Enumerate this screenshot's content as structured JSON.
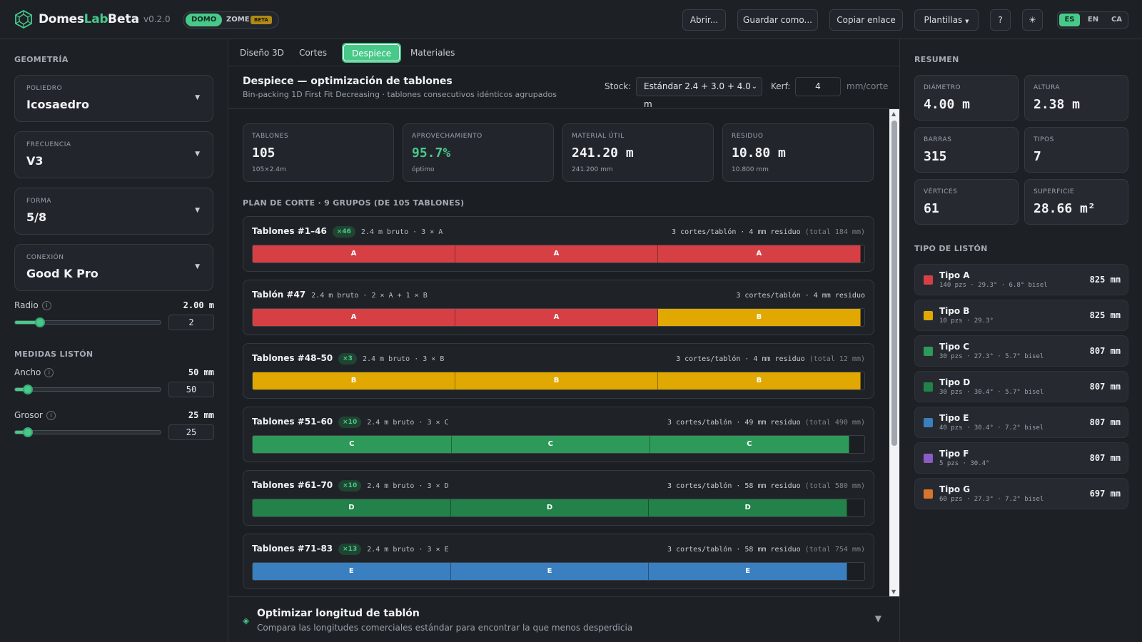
{
  "header": {
    "brand_main": "Domes",
    "brand_accent": "Lab",
    "title": "Beta",
    "version": "v0.2.0",
    "modes": {
      "domo": "DOMO",
      "zome": "ZOME",
      "zome_badge": "BETA"
    },
    "buttons": {
      "open": "Abrir...",
      "save_as": "Guardar como...",
      "copy_link": "Copiar enlace",
      "templates": "Plantillas",
      "help": "?",
      "theme": "☀"
    },
    "languages": [
      "ES",
      "EN",
      "CA"
    ],
    "active_language": "ES"
  },
  "left": {
    "geometry_title": "GEOMETRÍA",
    "selects": [
      {
        "label": "POLIEDRO",
        "value": "Icosaedro"
      },
      {
        "label": "FRECUENCIA",
        "value": "V3"
      },
      {
        "label": "FORMA",
        "value": "5/8"
      },
      {
        "label": "CONEXIÓN",
        "value": "Good K Pro"
      }
    ],
    "radius": {
      "label": "Radio",
      "display": "2.00 m",
      "input": "2",
      "fraction": 0.17
    },
    "medidas_title": "MEDIDAS LISTÓN",
    "width": {
      "label": "Ancho",
      "display": "50 mm",
      "input": "50",
      "fraction": 0.09
    },
    "thickness": {
      "label": "Grosor",
      "display": "25 mm",
      "input": "25",
      "fraction": 0.09
    }
  },
  "tabs": [
    "Diseño 3D",
    "Cortes",
    "Despiece",
    "Materiales"
  ],
  "active_tab": "Despiece",
  "panel": {
    "title": "Despiece — optimización de tablones",
    "subtitle": "Bin-packing 1D First Fit Decreasing · tablones consecutivos idénticos agrupados",
    "stock_label": "Stock:",
    "stock_value": "Estándar 2.4 + 3.0 + 4.0 m",
    "kerf_label": "Kerf:",
    "kerf_value": "4",
    "kerf_unit": "mm/corte"
  },
  "stats": [
    {
      "label": "TABLONES",
      "value": "105",
      "sub": "105×2.4m",
      "color": "#f1f3f5"
    },
    {
      "label": "APROVECHAMIENTO",
      "value": "95.7%",
      "sub": "óptimo",
      "color": "#48c98a"
    },
    {
      "label": "MATERIAL ÚTIL",
      "value": "241.20 m",
      "sub": "241.200 mm",
      "color": "#f1f3f5"
    },
    {
      "label": "RESIDUO",
      "value": "10.80 m",
      "sub": "10.800 mm",
      "color": "#f1f3f5"
    }
  ],
  "plan_title": "PLAN DE CORTE · 9 GRUPOS (DE 105 TABLONES)",
  "groups": [
    {
      "title": "Tablones #1–46",
      "count": "×46",
      "desc": "2.4 m bruto · 3 × A",
      "right": "3 cortes/tablón · 4 mm residuo",
      "total": "(total 184 mm)",
      "pieces": [
        "A",
        "A",
        "A"
      ],
      "colors": [
        "#d64045",
        "#d64045",
        "#d64045"
      ],
      "used": 0.994
    },
    {
      "title": "Tablón #47",
      "count": "",
      "desc": "2.4 m bruto · 2 × A + 1 × B",
      "right": "3 cortes/tablón · 4 mm residuo",
      "total": "",
      "pieces": [
        "A",
        "A",
        "B"
      ],
      "colors": [
        "#d64045",
        "#d64045",
        "#e0a800"
      ],
      "used": 0.994
    },
    {
      "title": "Tablones #48–50",
      "count": "×3",
      "desc": "2.4 m bruto · 3 × B",
      "right": "3 cortes/tablón · 4 mm residuo",
      "total": "(total 12 mm)",
      "pieces": [
        "B",
        "B",
        "B"
      ],
      "colors": [
        "#e0a800",
        "#e0a800",
        "#e0a800"
      ],
      "used": 0.994
    },
    {
      "title": "Tablones #51–60",
      "count": "×10",
      "desc": "2.4 m bruto · 3 × C",
      "right": "3 cortes/tablón · 49 mm residuo",
      "total": "(total 490 mm)",
      "pieces": [
        "C",
        "C",
        "C"
      ],
      "colors": [
        "#2e9a5a",
        "#2e9a5a",
        "#2e9a5a"
      ],
      "used": 0.975
    },
    {
      "title": "Tablones #61–70",
      "count": "×10",
      "desc": "2.4 m bruto · 3 × D",
      "right": "3 cortes/tablón · 58 mm residuo",
      "total": "(total 580 mm)",
      "pieces": [
        "D",
        "D",
        "D"
      ],
      "colors": [
        "#23814a",
        "#23814a",
        "#23814a"
      ],
      "used": 0.972
    },
    {
      "title": "Tablones #71–83",
      "count": "×13",
      "desc": "2.4 m bruto · 3 × E",
      "right": "3 cortes/tablón · 58 mm residuo",
      "total": "(total 754 mm)",
      "pieces": [
        "E",
        "E",
        "E"
      ],
      "colors": [
        "#3a7fc0",
        "#3a7fc0",
        "#3a7fc0"
      ],
      "used": 0.972
    }
  ],
  "optimizer": {
    "title": "Optimizar longitud de tablón",
    "subtitle": "Compara las longitudes comerciales estándar para encontrar la que menos desperdicia"
  },
  "summary": {
    "title": "RESUMEN",
    "cards": [
      {
        "label": "DIÁMETRO",
        "value": "4.00 m"
      },
      {
        "label": "ALTURA",
        "value": "2.38 m"
      },
      {
        "label": "BARRAS",
        "value": "315"
      },
      {
        "label": "TIPOS",
        "value": "7"
      },
      {
        "label": "VÉRTICES",
        "value": "61"
      },
      {
        "label": "SUPERFICIE",
        "value": "28.66 m²"
      }
    ]
  },
  "types_title": "TIPO DE LISTÓN",
  "types": [
    {
      "name": "Tipo A",
      "detail": "140 pzs · 29.3° · 6.8° bisel",
      "length": "825 mm",
      "color": "#d64045"
    },
    {
      "name": "Tipo B",
      "detail": "10 pzs · 29.3°",
      "length": "825 mm",
      "color": "#e0a800"
    },
    {
      "name": "Tipo C",
      "detail": "30 pzs · 27.3° · 5.7° bisel",
      "length": "807 mm",
      "color": "#2e9a5a"
    },
    {
      "name": "Tipo D",
      "detail": "30 pzs · 30.4° · 5.7° bisel",
      "length": "807 mm",
      "color": "#23814a"
    },
    {
      "name": "Tipo E",
      "detail": "40 pzs · 30.4° · 7.2° bisel",
      "length": "807 mm",
      "color": "#3a7fc0"
    },
    {
      "name": "Tipo F",
      "detail": "5 pzs · 30.4°",
      "length": "807 mm",
      "color": "#8a5cc4"
    },
    {
      "name": "Tipo G",
      "detail": "60 pzs · 27.3° · 7.2° bisel",
      "length": "697 mm",
      "color": "#d9742e"
    }
  ]
}
